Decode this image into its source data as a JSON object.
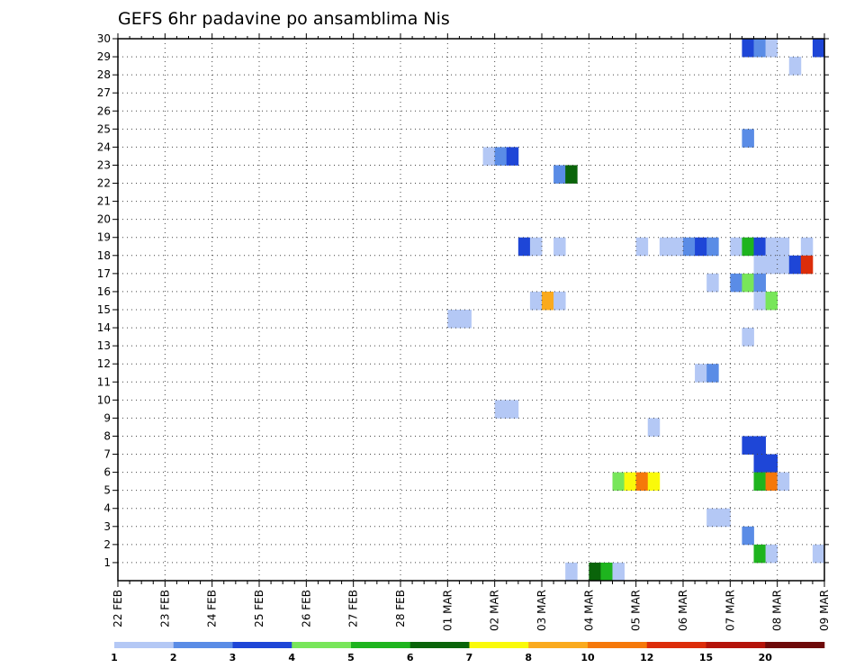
{
  "chart_data": {
    "type": "heatmap",
    "title": "GEFS 6hr padavine po ansamblima Nis",
    "xlabel": "",
    "ylabel": "",
    "x_tick_labels": [
      "22 FEB",
      "23 FEB",
      "24 FEB",
      "25 FEB",
      "26 FEB",
      "27 FEB",
      "28 FEB",
      "01 MAR",
      "02 MAR",
      "03 MAR",
      "04 MAR",
      "05 MAR",
      "06 MAR",
      "07 MAR",
      "08 MAR",
      "09 MAR"
    ],
    "y_tick_labels": [
      "1",
      "2",
      "3",
      "4",
      "5",
      "6",
      "7",
      "8",
      "9",
      "10",
      "11",
      "12",
      "13",
      "14",
      "15",
      "16",
      "17",
      "18",
      "19",
      "20",
      "21",
      "22",
      "23",
      "24",
      "25",
      "26",
      "27",
      "28",
      "29",
      "30"
    ],
    "xlim": [
      "22 FEB",
      "09 MAR"
    ],
    "ylim": [
      0,
      30
    ],
    "x_steps": 60,
    "grid": true,
    "legend_placement": "bottom",
    "legend": {
      "labels": [
        "1",
        "2",
        "3",
        "4",
        "5",
        "6",
        "7",
        "8",
        "10",
        "12",
        "15",
        "20"
      ],
      "colors": [
        "#b4c8f5",
        "#5a8ce6",
        "#1e46d7",
        "#78e65a",
        "#1eb41e",
        "#0a640a",
        "#fafa0a",
        "#faaa1e",
        "#f5780a",
        "#dc2d0a",
        "#b4140a",
        "#6e0a0a"
      ]
    },
    "cells": [
      {
        "x": 53,
        "y": 30,
        "c": 2
      },
      {
        "x": 54,
        "y": 30,
        "c": 1
      },
      {
        "x": 55,
        "y": 30,
        "c": 0
      },
      {
        "x": 59,
        "y": 30,
        "c": 2
      },
      {
        "x": 57,
        "y": 29,
        "c": 0
      },
      {
        "x": 53,
        "y": 25,
        "c": 1
      },
      {
        "x": 31,
        "y": 24,
        "c": 0
      },
      {
        "x": 32,
        "y": 24,
        "c": 1
      },
      {
        "x": 33,
        "y": 24,
        "c": 2
      },
      {
        "x": 37,
        "y": 23,
        "c": 1
      },
      {
        "x": 38,
        "y": 23,
        "c": 5
      },
      {
        "x": 34,
        "y": 19,
        "c": 2
      },
      {
        "x": 35,
        "y": 19,
        "c": 0
      },
      {
        "x": 37,
        "y": 19,
        "c": 0
      },
      {
        "x": 44,
        "y": 19,
        "c": 0
      },
      {
        "x": 46,
        "y": 19,
        "c": 0
      },
      {
        "x": 47,
        "y": 19,
        "c": 0
      },
      {
        "x": 48,
        "y": 19,
        "c": 1
      },
      {
        "x": 49,
        "y": 19,
        "c": 2
      },
      {
        "x": 50,
        "y": 19,
        "c": 1
      },
      {
        "x": 52,
        "y": 19,
        "c": 0
      },
      {
        "x": 53,
        "y": 19,
        "c": 4
      },
      {
        "x": 54,
        "y": 19,
        "c": 2
      },
      {
        "x": 55,
        "y": 19,
        "c": 0
      },
      {
        "x": 56,
        "y": 19,
        "c": 0
      },
      {
        "x": 58,
        "y": 19,
        "c": 0
      },
      {
        "x": 54,
        "y": 18,
        "c": 0
      },
      {
        "x": 55,
        "y": 18,
        "c": 0
      },
      {
        "x": 56,
        "y": 18,
        "c": 0
      },
      {
        "x": 57,
        "y": 18,
        "c": 2
      },
      {
        "x": 58,
        "y": 18,
        "c": 9
      },
      {
        "x": 50,
        "y": 17,
        "c": 0
      },
      {
        "x": 52,
        "y": 17,
        "c": 1
      },
      {
        "x": 53,
        "y": 17,
        "c": 3
      },
      {
        "x": 54,
        "y": 17,
        "c": 1
      },
      {
        "x": 35,
        "y": 16,
        "c": 0
      },
      {
        "x": 36,
        "y": 16,
        "c": 7
      },
      {
        "x": 37,
        "y": 16,
        "c": 0
      },
      {
        "x": 54,
        "y": 16,
        "c": 0
      },
      {
        "x": 55,
        "y": 16,
        "c": 3
      },
      {
        "x": 28,
        "y": 15,
        "c": 0
      },
      {
        "x": 29,
        "y": 15,
        "c": 0
      },
      {
        "x": 53,
        "y": 14,
        "c": 0
      },
      {
        "x": 49,
        "y": 12,
        "c": 0
      },
      {
        "x": 50,
        "y": 12,
        "c": 1
      },
      {
        "x": 32,
        "y": 10,
        "c": 0
      },
      {
        "x": 33,
        "y": 10,
        "c": 0
      },
      {
        "x": 45,
        "y": 9,
        "c": 0
      },
      {
        "x": 53,
        "y": 8,
        "c": 2
      },
      {
        "x": 54,
        "y": 8,
        "c": 2
      },
      {
        "x": 54,
        "y": 7,
        "c": 2
      },
      {
        "x": 55,
        "y": 7,
        "c": 2
      },
      {
        "x": 42,
        "y": 6,
        "c": 3
      },
      {
        "x": 43,
        "y": 6,
        "c": 6
      },
      {
        "x": 44,
        "y": 6,
        "c": 8
      },
      {
        "x": 45,
        "y": 6,
        "c": 6
      },
      {
        "x": 54,
        "y": 6,
        "c": 4
      },
      {
        "x": 55,
        "y": 6,
        "c": 8
      },
      {
        "x": 56,
        "y": 6,
        "c": 0
      },
      {
        "x": 50,
        "y": 4,
        "c": 0
      },
      {
        "x": 51,
        "y": 4,
        "c": 0
      },
      {
        "x": 53,
        "y": 3,
        "c": 1
      },
      {
        "x": 54,
        "y": 2,
        "c": 4
      },
      {
        "x": 55,
        "y": 2,
        "c": 0
      },
      {
        "x": 59,
        "y": 2,
        "c": 0
      },
      {
        "x": 38,
        "y": 1,
        "c": 0
      },
      {
        "x": 40,
        "y": 1,
        "c": 5
      },
      {
        "x": 41,
        "y": 1,
        "c": 4
      },
      {
        "x": 42,
        "y": 1,
        "c": 0
      }
    ]
  }
}
